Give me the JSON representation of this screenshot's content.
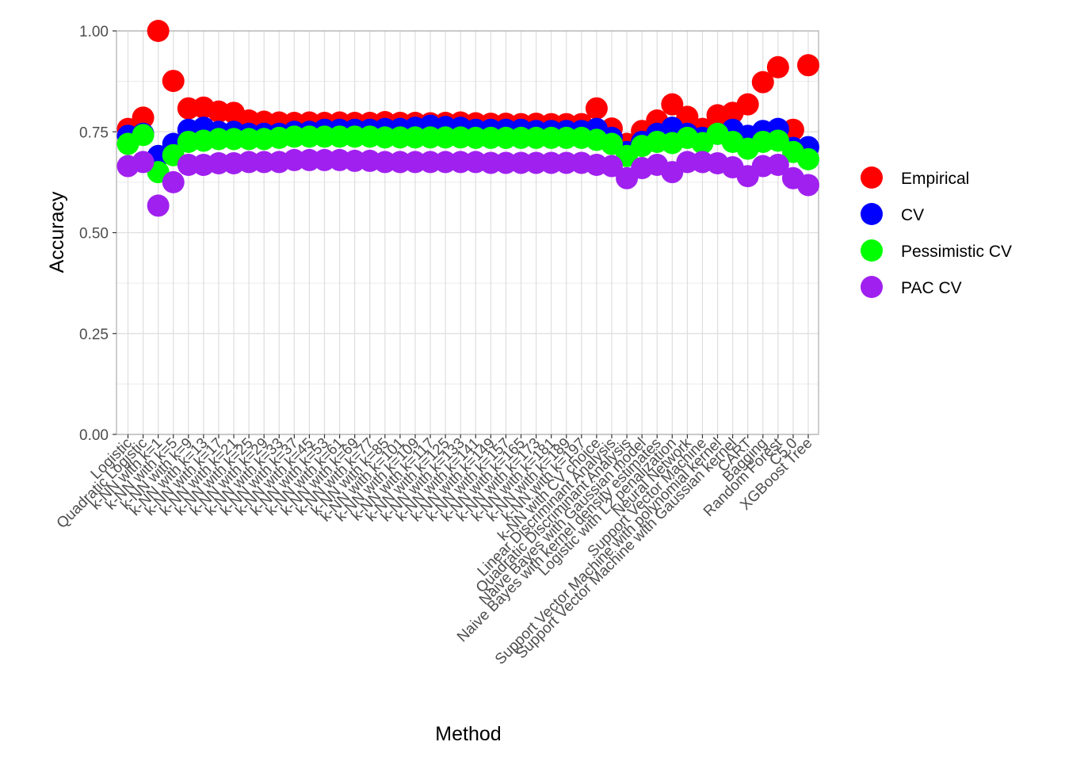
{
  "chart_data": {
    "type": "scatter",
    "xlabel": "Method",
    "ylabel": "Accuracy",
    "ylim": [
      0,
      1
    ],
    "yticks": [
      "0.00",
      "0.25",
      "0.50",
      "0.75",
      "1.00"
    ],
    "ytick_values": [
      0,
      0.25,
      0.5,
      0.75,
      1.0
    ],
    "grid": true,
    "legend_position": "right",
    "categories": [
      "Logistic",
      "Quadratic Logistic",
      "k-NN with k=1",
      "k-NN with k=5",
      "k-NN with k=9",
      "k-NN with k=13",
      "k-NN with k=17",
      "k-NN with k=21",
      "k-NN with k=25",
      "k-NN with k=29",
      "k-NN with k=33",
      "k-NN with k=37",
      "k-NN with k=45",
      "k-NN with k=53",
      "k-NN with k=61",
      "k-NN with k=69",
      "k-NN with k=77",
      "k-NN with k=85",
      "k-NN with k=101",
      "k-NN with k=109",
      "k-NN with k=117",
      "k-NN with k=125",
      "k-NN with k=133",
      "k-NN with k=141",
      "k-NN with k=149",
      "k-NN with k=157",
      "k-NN with k=165",
      "k-NN with k=173",
      "k-NN with k=181",
      "k-NN with k=189",
      "k-NN with k=197",
      "k-NN with CV choice",
      "Linear Discriminant Analysis",
      "Quadratic Discriminant Analysis",
      "Naive Bayes with Gaussian model",
      "Naive Bayes with kernel density estimates",
      "Logistic with L2 penalization",
      "Neural Network",
      "Support Vector Machine",
      "Support Vector Machine with polynomial kernel",
      "Support Vector Machine with Gaussian kernel",
      "CART",
      "Bagging",
      "Random Forest",
      "C5.0",
      "XGBoost Tree"
    ],
    "series": [
      {
        "name": "Empirical",
        "color": "#ff0000",
        "values": [
          0.757,
          0.785,
          1.0,
          0.876,
          0.808,
          0.81,
          0.8,
          0.797,
          0.778,
          0.775,
          0.773,
          0.772,
          0.773,
          0.772,
          0.773,
          0.772,
          0.772,
          0.774,
          0.772,
          0.772,
          0.771,
          0.772,
          0.773,
          0.771,
          0.77,
          0.77,
          0.769,
          0.77,
          0.769,
          0.769,
          0.769,
          0.808,
          0.758,
          0.72,
          0.752,
          0.778,
          0.818,
          0.787,
          0.757,
          0.791,
          0.797,
          0.818,
          0.873,
          0.91,
          0.755,
          0.915
        ]
      },
      {
        "name": "CV",
        "color": "#0000ff",
        "values": [
          0.74,
          0.745,
          0.69,
          0.72,
          0.755,
          0.76,
          0.75,
          0.75,
          0.745,
          0.745,
          0.745,
          0.75,
          0.75,
          0.755,
          0.755,
          0.755,
          0.755,
          0.757,
          0.757,
          0.76,
          0.765,
          0.762,
          0.76,
          0.755,
          0.755,
          0.755,
          0.755,
          0.752,
          0.752,
          0.752,
          0.752,
          0.757,
          0.735,
          0.7,
          0.725,
          0.745,
          0.76,
          0.745,
          0.735,
          0.745,
          0.755,
          0.74,
          0.752,
          0.757,
          0.71,
          0.712
        ]
      },
      {
        "name": "Pessimistic CV",
        "color": "#00ff00",
        "values": [
          0.72,
          0.742,
          0.65,
          0.692,
          0.725,
          0.728,
          0.732,
          0.732,
          0.732,
          0.732,
          0.735,
          0.738,
          0.738,
          0.738,
          0.738,
          0.738,
          0.738,
          0.736,
          0.736,
          0.736,
          0.736,
          0.736,
          0.736,
          0.735,
          0.735,
          0.735,
          0.735,
          0.735,
          0.735,
          0.735,
          0.735,
          0.73,
          0.72,
          0.69,
          0.715,
          0.725,
          0.722,
          0.735,
          0.722,
          0.745,
          0.725,
          0.708,
          0.725,
          0.728,
          0.7,
          0.682
        ]
      },
      {
        "name": "PAC CV",
        "color": "#a020f0",
        "values": [
          0.665,
          0.675,
          0.567,
          0.625,
          0.668,
          0.668,
          0.672,
          0.672,
          0.675,
          0.675,
          0.675,
          0.68,
          0.68,
          0.68,
          0.68,
          0.678,
          0.678,
          0.675,
          0.675,
          0.675,
          0.675,
          0.675,
          0.675,
          0.675,
          0.673,
          0.673,
          0.673,
          0.673,
          0.673,
          0.673,
          0.673,
          0.668,
          0.665,
          0.635,
          0.66,
          0.668,
          0.65,
          0.675,
          0.675,
          0.672,
          0.662,
          0.64,
          0.665,
          0.668,
          0.635,
          0.618
        ]
      }
    ]
  }
}
